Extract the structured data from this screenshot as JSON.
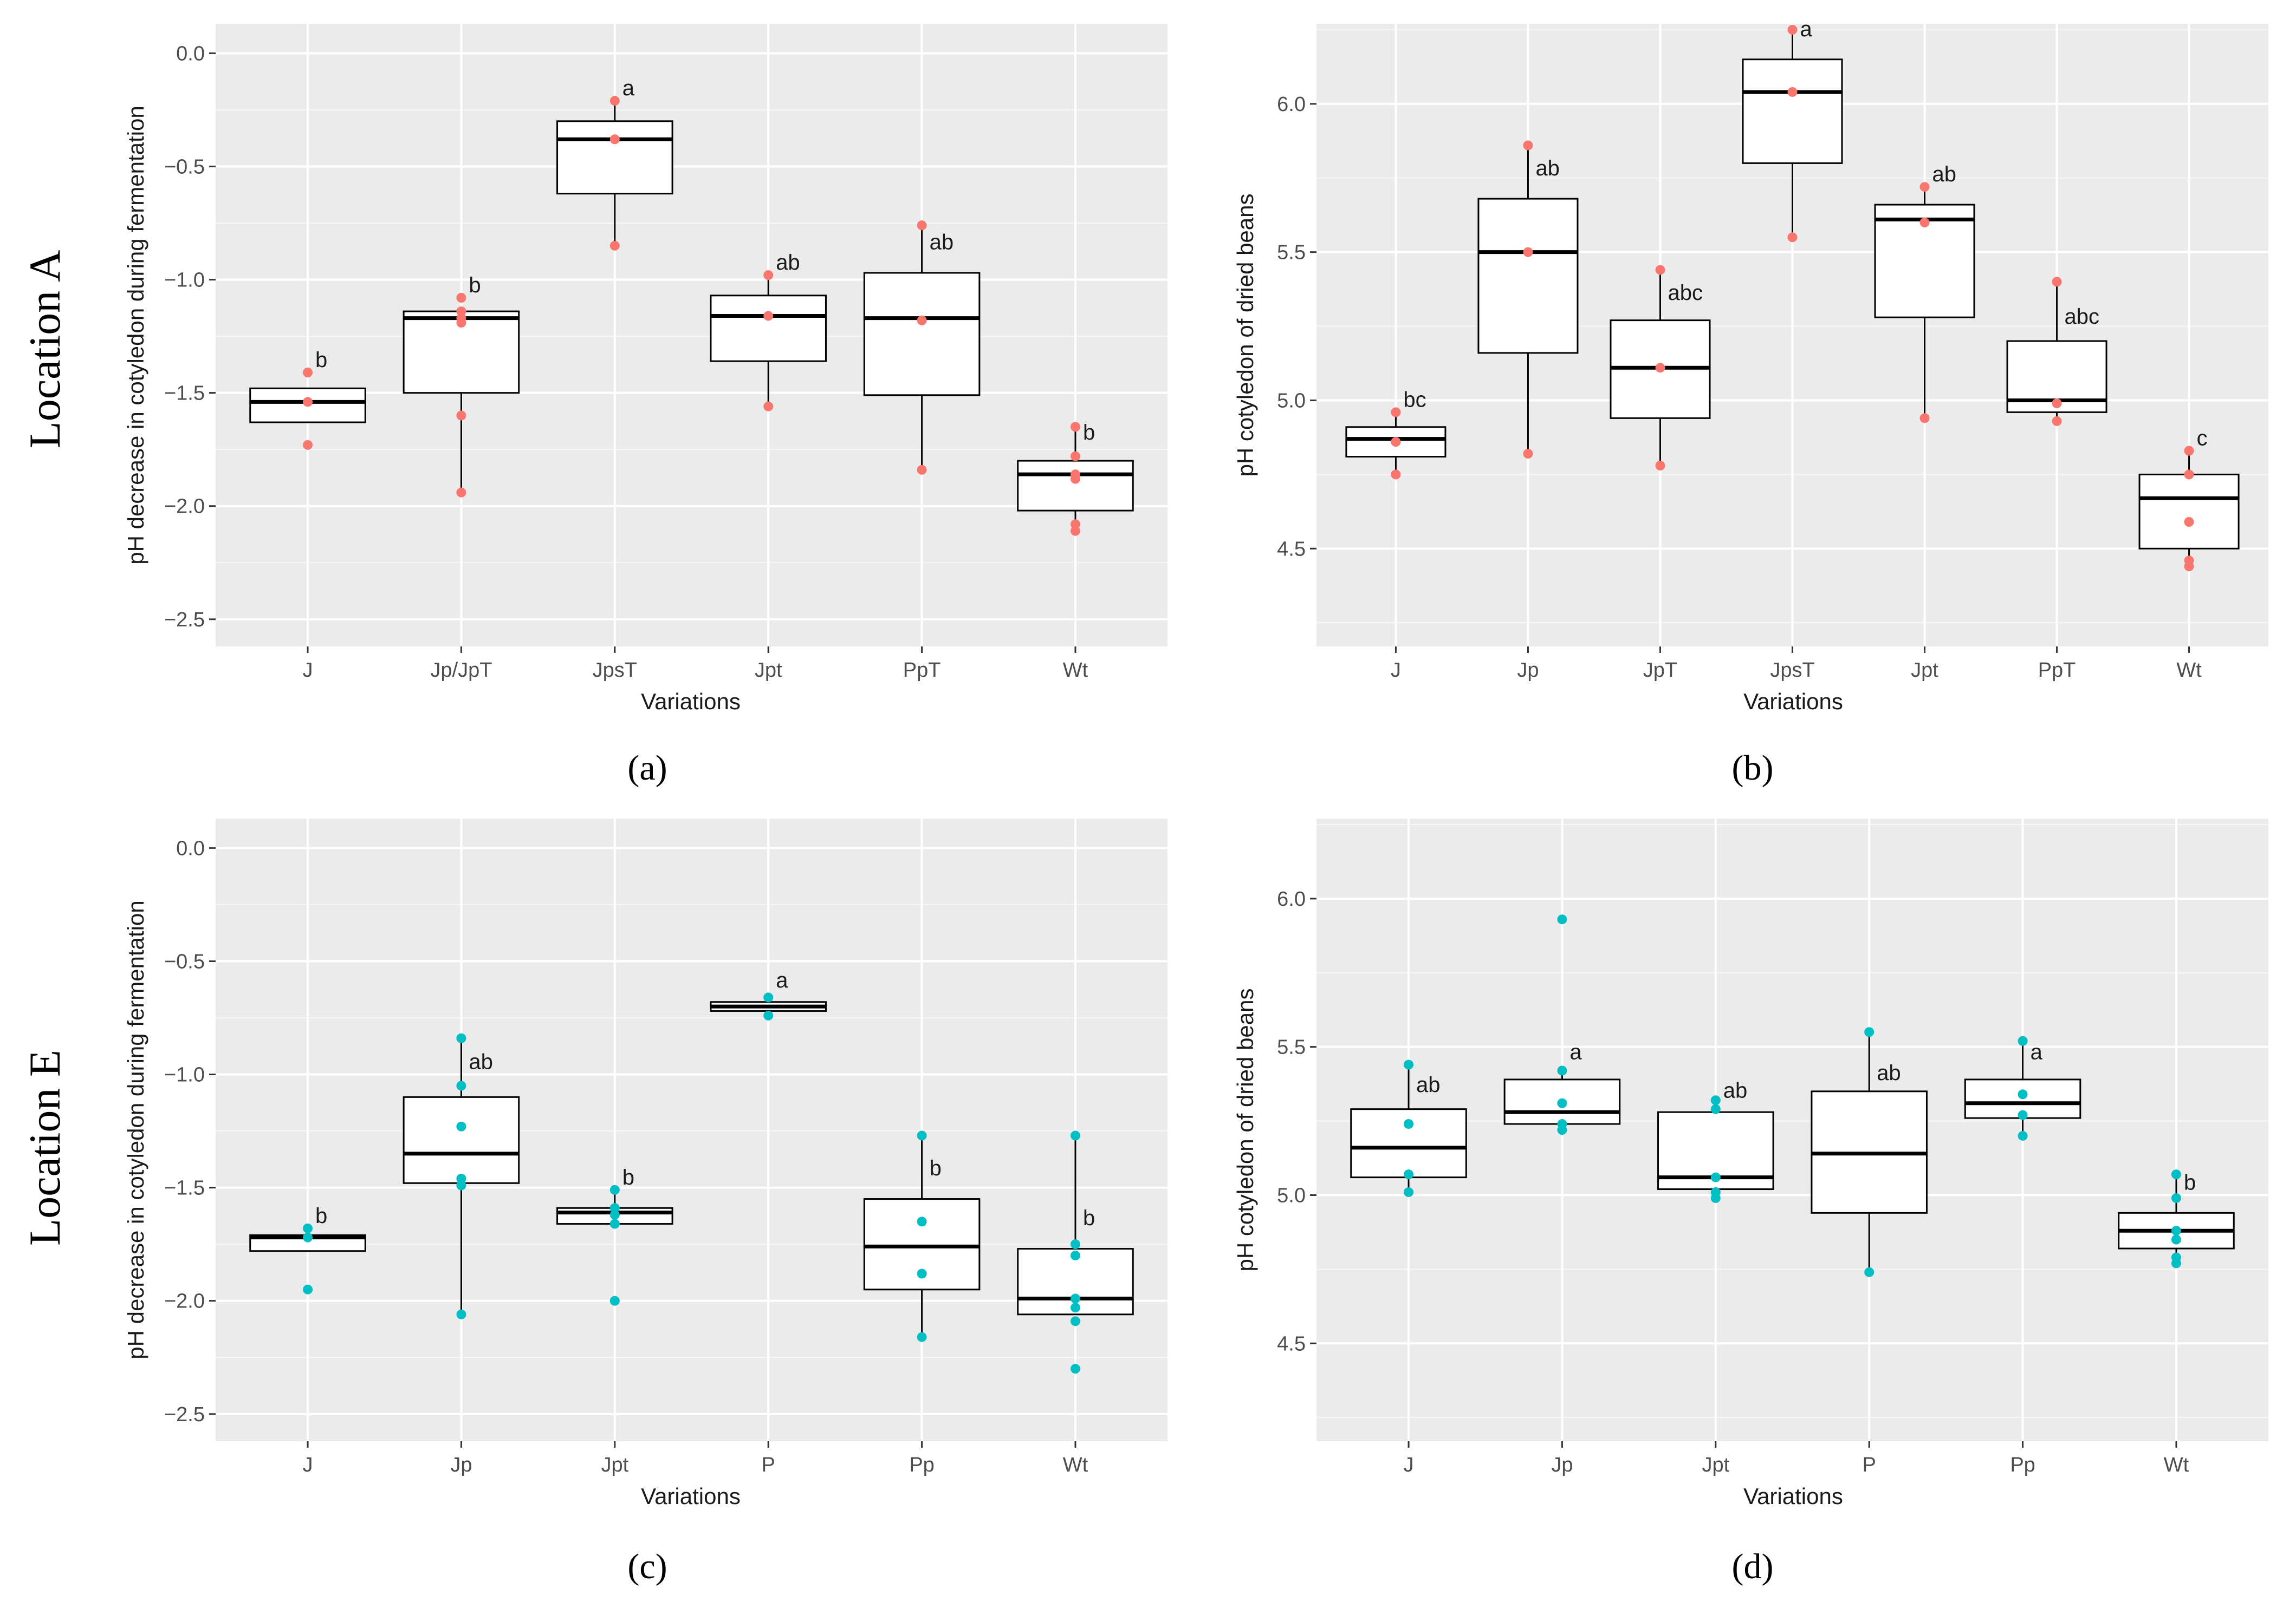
{
  "row_labels": [
    "Location A",
    "Location E"
  ],
  "colors": {
    "location_a": "#f8766d",
    "location_e": "#00bfc4",
    "panel_bg": "#ebebeb",
    "grid": "#ffffff"
  },
  "chart_data": [
    {
      "id": "a",
      "type": "box",
      "caption": "(a)",
      "xlabel": "Variations",
      "ylabel": "pH decrease in cotyledon during fermentation",
      "ylim": [
        -2.62,
        0.13
      ],
      "yticks": [
        0.0,
        -0.5,
        -1.0,
        -1.5,
        -2.0,
        -2.5
      ],
      "ytick_labels": [
        "0.0",
        "−0.5",
        "−1.0",
        "−1.5",
        "−2.0",
        "−2.5"
      ],
      "point_color": "#f8766d",
      "categories": [
        "J",
        "Jp/JpT",
        "JpsT",
        "Jpt",
        "PpT",
        "Wt"
      ],
      "boxes": [
        {
          "q1": -1.63,
          "median": -1.54,
          "q3": -1.48,
          "low": -1.63,
          "high": -1.48,
          "points": [
            -1.41,
            -1.54,
            -1.73
          ],
          "sig": "b",
          "sig_y": -1.41
        },
        {
          "q1": -1.5,
          "median": -1.17,
          "q3": -1.14,
          "low": -1.94,
          "high": -1.14,
          "points": [
            -1.08,
            -1.14,
            -1.17,
            -1.19,
            -1.6,
            -1.94
          ],
          "sig": "b",
          "sig_y": -1.08
        },
        {
          "q1": -0.62,
          "median": -0.38,
          "q3": -0.3,
          "low": -0.85,
          "high": -0.21,
          "points": [
            -0.21,
            -0.38,
            -0.85
          ],
          "sig": "a",
          "sig_y": -0.21
        },
        {
          "q1": -1.36,
          "median": -1.16,
          "q3": -1.07,
          "low": -1.56,
          "high": -0.98,
          "points": [
            -0.98,
            -1.16,
            -1.56
          ],
          "sig": "ab",
          "sig_y": -0.98
        },
        {
          "q1": -1.51,
          "median": -1.17,
          "q3": -0.97,
          "low": -1.84,
          "high": -0.76,
          "points": [
            -0.76,
            -1.18,
            -1.84
          ],
          "sig": "ab",
          "sig_y": -0.89
        },
        {
          "q1": -2.02,
          "median": -1.86,
          "q3": -1.8,
          "low": -2.11,
          "high": -1.65,
          "points": [
            -1.65,
            -1.78,
            -1.86,
            -1.88,
            -2.08,
            -2.11
          ],
          "sig": "b",
          "sig_y": -1.73
        }
      ]
    },
    {
      "id": "b",
      "type": "box",
      "caption": "(b)",
      "xlabel": "Variations",
      "ylabel": "pH cotyledon of dried beans",
      "ylim": [
        4.17,
        6.27
      ],
      "yticks": [
        6.0,
        5.5,
        5.0,
        4.5
      ],
      "ytick_labels": [
        "6.0",
        "5.5",
        "5.0",
        "4.5"
      ],
      "point_color": "#f8766d",
      "categories": [
        "J",
        "Jp",
        "JpT",
        "JpsT",
        "Jpt",
        "PpT",
        "Wt"
      ],
      "boxes": [
        {
          "q1": 4.81,
          "median": 4.87,
          "q3": 4.91,
          "low": 4.75,
          "high": 4.96,
          "points": [
            4.96,
            4.86,
            4.75
          ],
          "sig": "bc",
          "sig_y": 4.96
        },
        {
          "q1": 5.16,
          "median": 5.5,
          "q3": 5.68,
          "low": 4.82,
          "high": 5.86,
          "points": [
            5.86,
            5.5,
            4.82
          ],
          "sig": "ab",
          "sig_y": 5.74
        },
        {
          "q1": 4.94,
          "median": 5.11,
          "q3": 5.27,
          "low": 4.78,
          "high": 5.44,
          "points": [
            5.44,
            5.11,
            4.78
          ],
          "sig": "abc",
          "sig_y": 5.32
        },
        {
          "q1": 5.8,
          "median": 6.04,
          "q3": 6.15,
          "low": 5.55,
          "high": 6.25,
          "points": [
            6.25,
            6.04,
            5.55
          ],
          "sig": "a",
          "sig_y": 6.21
        },
        {
          "q1": 5.28,
          "median": 5.61,
          "q3": 5.66,
          "low": 4.94,
          "high": 5.72,
          "points": [
            5.72,
            5.6,
            4.94
          ],
          "sig": "ab",
          "sig_y": 5.72
        },
        {
          "q1": 4.96,
          "median": 5.0,
          "q3": 5.2,
          "low": 4.93,
          "high": 5.4,
          "points": [
            5.4,
            4.99,
            4.93
          ],
          "sig": "abc",
          "sig_y": 5.24
        },
        {
          "q1": 4.5,
          "median": 4.67,
          "q3": 4.75,
          "low": 4.44,
          "high": 4.83,
          "points": [
            4.83,
            4.75,
            4.59,
            4.46,
            4.44
          ],
          "sig": "c",
          "sig_y": 4.83
        }
      ]
    },
    {
      "id": "c",
      "type": "box",
      "caption": "(c)",
      "xlabel": "Variations",
      "ylabel": "pH decrease in cotyledon during fermentation",
      "ylim": [
        -2.62,
        0.13
      ],
      "yticks": [
        0.0,
        -0.5,
        -1.0,
        -1.5,
        -2.0,
        -2.5
      ],
      "ytick_labels": [
        "0.0",
        "−0.5",
        "−1.0",
        "−1.5",
        "−2.0",
        "−2.5"
      ],
      "point_color": "#00bfc4",
      "categories": [
        "J",
        "Jp",
        "Jpt",
        "P",
        "Pp",
        "Wt"
      ],
      "boxes": [
        {
          "q1": -1.78,
          "median": -1.72,
          "q3": -1.71,
          "low": -1.78,
          "high": -1.71,
          "points": [
            -1.68,
            -1.72,
            -1.95
          ],
          "sig": "b",
          "sig_y": -1.68
        },
        {
          "q1": -1.48,
          "median": -1.35,
          "q3": -1.1,
          "low": -2.06,
          "high": -0.84,
          "points": [
            -0.84,
            -1.05,
            -1.23,
            -1.46,
            -1.49,
            -2.06
          ],
          "sig": "ab",
          "sig_y": -1.0
        },
        {
          "q1": -1.66,
          "median": -1.61,
          "q3": -1.59,
          "low": -1.66,
          "high": -1.51,
          "points": [
            -1.51,
            -1.59,
            -1.62,
            -1.66,
            -2.0
          ],
          "sig": "b",
          "sig_y": -1.51
        },
        {
          "q1": -0.72,
          "median": -0.7,
          "q3": -0.68,
          "low": -0.72,
          "high": -0.68,
          "points": [
            -0.66,
            -0.74
          ],
          "sig": "a",
          "sig_y": -0.64
        },
        {
          "q1": -1.95,
          "median": -1.76,
          "q3": -1.55,
          "low": -2.16,
          "high": -1.27,
          "points": [
            -1.27,
            -1.65,
            -1.88,
            -2.16
          ],
          "sig": "b",
          "sig_y": -1.47
        },
        {
          "q1": -2.06,
          "median": -1.99,
          "q3": -1.77,
          "low": -2.06,
          "high": -1.27,
          "points": [
            -1.27,
            -1.75,
            -1.8,
            -1.99,
            -2.03,
            -2.09,
            -2.3
          ],
          "sig": "b",
          "sig_y": -1.69
        }
      ]
    },
    {
      "id": "d",
      "type": "box",
      "caption": "(d)",
      "xlabel": "Variations",
      "ylabel": "pH cotyledon of dried beans",
      "ylim": [
        4.17,
        6.27
      ],
      "yticks": [
        6.0,
        5.5,
        5.0,
        4.5
      ],
      "ytick_labels": [
        "6.0",
        "5.5",
        "5.0",
        "4.5"
      ],
      "point_color": "#00bfc4",
      "categories": [
        "J",
        "Jp",
        "Jpt",
        "P",
        "Pp",
        "Wt"
      ],
      "boxes": [
        {
          "q1": 5.06,
          "median": 5.16,
          "q3": 5.29,
          "low": 5.01,
          "high": 5.44,
          "points": [
            5.44,
            5.24,
            5.07,
            5.01
          ],
          "sig": "ab",
          "sig_y": 5.33
        },
        {
          "q1": 5.24,
          "median": 5.28,
          "q3": 5.39,
          "low": 5.22,
          "high": 5.42,
          "points": [
            5.93,
            5.42,
            5.31,
            5.24,
            5.22
          ],
          "sig": "a",
          "sig_y": 5.44
        },
        {
          "q1": 5.02,
          "median": 5.06,
          "q3": 5.28,
          "low": 4.99,
          "high": 5.32,
          "points": [
            5.32,
            5.29,
            5.06,
            5.01,
            4.99
          ],
          "sig": "ab",
          "sig_y": 5.31
        },
        {
          "q1": 4.94,
          "median": 5.14,
          "q3": 5.35,
          "low": 4.74,
          "high": 5.55,
          "points": [
            5.55,
            4.74
          ],
          "sig": "ab",
          "sig_y": 5.37
        },
        {
          "q1": 5.26,
          "median": 5.31,
          "q3": 5.39,
          "low": 5.2,
          "high": 5.52,
          "points": [
            5.52,
            5.34,
            5.27,
            5.2
          ],
          "sig": "a",
          "sig_y": 5.44
        },
        {
          "q1": 4.82,
          "median": 4.88,
          "q3": 4.94,
          "low": 4.77,
          "high": 5.07,
          "points": [
            5.07,
            4.99,
            4.88,
            4.85,
            4.79,
            4.77
          ],
          "sig": "b",
          "sig_y": 5.0
        }
      ]
    }
  ]
}
